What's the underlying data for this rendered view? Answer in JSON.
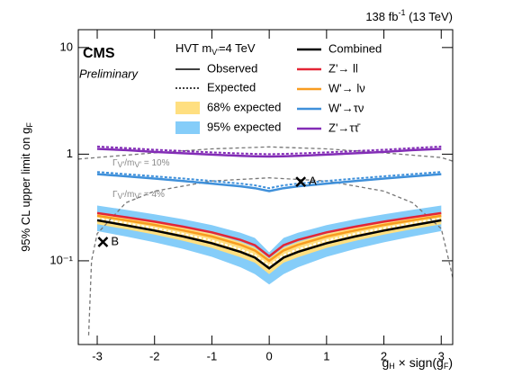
{
  "chart_data": {
    "type": "line",
    "energy_label": [
      "138 fb",
      "-1",
      " (13 TeV)"
    ],
    "cms": "CMS",
    "preliminary": "Preliminary",
    "legend_header": [
      "HVT m",
      "V'",
      "=4 TeV"
    ],
    "ylabel": [
      "95% CL upper limit on g",
      "F"
    ],
    "xlabel": [
      "g",
      "H",
      " × sign(g",
      "F",
      ")"
    ],
    "style_legend": {
      "observed": "Observed",
      "expected": "Expected"
    },
    "width_labels": [
      {
        "parts": [
          "Γ",
          "V'",
          "/m",
          "V'",
          " = 10%"
        ],
        "x": [
          -3.33,
          -3,
          -2,
          -1,
          0,
          1,
          2,
          3,
          3.2
        ],
        "values": [
          0.9,
          0.93,
          1.03,
          1.12,
          1.17,
          1.12,
          1.03,
          0.93,
          0.86
        ]
      },
      {
        "parts": [
          "Γ",
          "V'",
          "/m",
          "V'",
          " = 4%"
        ],
        "x": [
          -3.15,
          -3.1,
          -3,
          -2.5,
          -2,
          -1,
          0,
          1,
          2,
          2.5,
          3,
          3.1,
          3.2
        ],
        "values": [
          0.02,
          0.1,
          0.18,
          0.35,
          0.45,
          0.56,
          0.6,
          0.56,
          0.45,
          0.35,
          0.2,
          0.12,
          0.07
        ]
      }
    ],
    "xlim": [
      -3.33,
      3.2
    ],
    "ylim": [
      0.0164,
      14.7
    ],
    "log_y": true,
    "xticks": [
      -3,
      -2,
      -1,
      0,
      1,
      2,
      3
    ],
    "yticks": [
      {
        "value": 0.1,
        "label": "10⁻¹"
      },
      1,
      10
    ],
    "x": [
      -3,
      -2.5,
      -2,
      -1.5,
      -1,
      -0.5,
      -0.25,
      0,
      0.25,
      0.5,
      1,
      1.5,
      2,
      2.5,
      3
    ],
    "bands": [
      {
        "name": "95% expected",
        "color": "#85cdf9",
        "lower": [
          0.19,
          0.169,
          0.149,
          0.129,
          0.109,
          0.087,
          0.075,
          0.06,
          0.075,
          0.087,
          0.109,
          0.129,
          0.149,
          0.169,
          0.19
        ],
        "upper": [
          0.33,
          0.301,
          0.273,
          0.245,
          0.216,
          0.183,
          0.164,
          0.12,
          0.164,
          0.183,
          0.216,
          0.245,
          0.273,
          0.301,
          0.33
        ]
      },
      {
        "name": "68% expected",
        "color": "#ffdf80",
        "lower": [
          0.22,
          0.198,
          0.176,
          0.154,
          0.132,
          0.108,
          0.096,
          0.075,
          0.096,
          0.108,
          0.132,
          0.154,
          0.176,
          0.198,
          0.22
        ],
        "upper": [
          0.28,
          0.254,
          0.23,
          0.205,
          0.18,
          0.15,
          0.133,
          0.105,
          0.133,
          0.15,
          0.18,
          0.205,
          0.23,
          0.254,
          0.28
        ]
      }
    ],
    "series": [
      {
        "name": "Combined",
        "color": "#000000",
        "values": [
          0.24,
          0.215,
          0.192,
          0.169,
          0.146,
          0.121,
          0.107,
          0.085,
          0.107,
          0.121,
          0.146,
          0.169,
          0.192,
          0.215,
          0.24
        ],
        "expected": [
          0.25,
          0.226,
          0.202,
          0.179,
          0.155,
          0.128,
          0.113,
          0.09,
          0.113,
          0.128,
          0.155,
          0.179,
          0.202,
          0.226,
          0.25
        ]
      },
      {
        "name": "Z'→ ll",
        "color": "#e42536",
        "values": [
          0.28,
          0.256,
          0.233,
          0.209,
          0.185,
          0.157,
          0.14,
          0.11,
          0.14,
          0.157,
          0.185,
          0.209,
          0.233,
          0.256,
          0.28
        ]
      },
      {
        "name": "W'→ lν",
        "color": "#f89c20",
        "values": [
          0.265,
          0.24,
          0.217,
          0.193,
          0.169,
          0.141,
          0.125,
          0.1,
          0.125,
          0.141,
          0.169,
          0.193,
          0.217,
          0.24,
          0.265
        ]
      },
      {
        "name": "W'→τν",
        "color": "#3f90da",
        "values": [
          0.65,
          0.62,
          0.59,
          0.56,
          0.53,
          0.5,
          0.48,
          0.45,
          0.48,
          0.5,
          0.53,
          0.56,
          0.59,
          0.62,
          0.65
        ],
        "expected": [
          0.68,
          0.65,
          0.62,
          0.59,
          0.56,
          0.53,
          0.51,
          0.48,
          0.51,
          0.53,
          0.56,
          0.59,
          0.62,
          0.65,
          0.68
        ]
      },
      {
        "name": "Z'→ττ̄",
        "color": "#832db6",
        "values": [
          1.12,
          1.09,
          1.05,
          1.02,
          0.99,
          0.965,
          0.955,
          0.95,
          0.955,
          0.965,
          0.99,
          1.02,
          1.05,
          1.09,
          1.12
        ],
        "expected": [
          1.18,
          1.14,
          1.1,
          1.07,
          1.04,
          1.015,
          1.005,
          1.0,
          1.005,
          1.015,
          1.04,
          1.07,
          1.1,
          1.14,
          1.18
        ]
      }
    ],
    "points": [
      {
        "name": "A",
        "x": 0.55,
        "y": 0.55
      },
      {
        "name": "B",
        "x": -2.9,
        "y": 0.15
      }
    ]
  }
}
